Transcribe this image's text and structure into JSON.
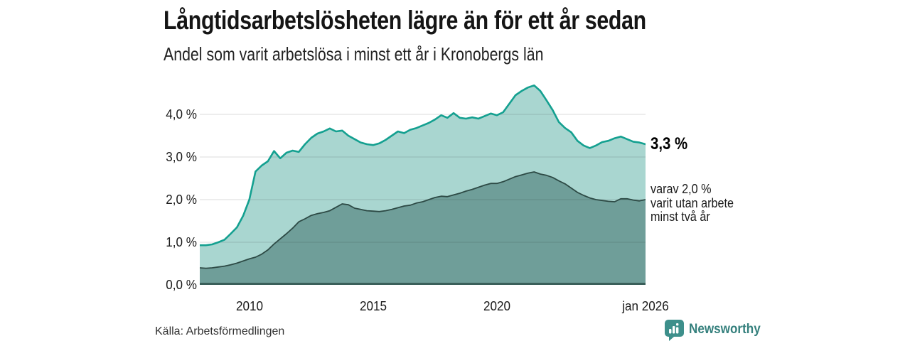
{
  "header": {
    "title": "Långtidsarbetslösheten lägre än för ett år sedan",
    "subtitle": "Andel som varit arbetslösa i minst ett år i Kronobergs län"
  },
  "chart_data": {
    "type": "area",
    "title": "Långtidsarbetslösheten lägre än för ett år sedan",
    "subtitle": "Andel som varit arbetslösa i minst ett år i Kronobergs län",
    "unit": "%",
    "x_range": [
      2008,
      2026
    ],
    "y_range": [
      0,
      4.93
    ],
    "grid_values": [
      1,
      2,
      3,
      4
    ],
    "y_ticks": [
      "0,0 %",
      "1,0 %",
      "2,0 %",
      "3,0 %",
      "4,0 %"
    ],
    "y_tick_values": [
      0,
      1,
      2,
      3,
      4
    ],
    "x_ticks": [
      "2010",
      "2015",
      "2020",
      "jan 2026"
    ],
    "x_tick_years": [
      2010,
      2015,
      2020,
      2026
    ],
    "legend_position": "right-annotations",
    "grid": true,
    "series": [
      {
        "name": "Arbetslösa minst ett år",
        "color": "#14a090",
        "fill": "#a9d6d0",
        "stroke_width": 2.6,
        "x_start": 2008.0,
        "x_step": 0.25,
        "values": [
          0.93,
          0.93,
          0.95,
          1.0,
          1.06,
          1.2,
          1.35,
          1.62,
          2.0,
          2.66,
          2.8,
          2.9,
          3.14,
          2.97,
          3.1,
          3.15,
          3.12,
          3.3,
          3.45,
          3.55,
          3.6,
          3.67,
          3.6,
          3.62,
          3.5,
          3.42,
          3.34,
          3.3,
          3.28,
          3.32,
          3.4,
          3.5,
          3.6,
          3.56,
          3.64,
          3.68,
          3.74,
          3.8,
          3.88,
          3.98,
          3.92,
          4.03,
          3.92,
          3.9,
          3.93,
          3.9,
          3.96,
          4.02,
          3.98,
          4.05,
          4.25,
          4.45,
          4.55,
          4.63,
          4.68,
          4.55,
          4.33,
          4.1,
          3.82,
          3.68,
          3.58,
          3.38,
          3.27,
          3.21,
          3.27,
          3.35,
          3.38,
          3.44,
          3.48,
          3.42,
          3.36,
          3.34,
          3.3
        ]
      },
      {
        "name": "varav arbetslösa minst två år",
        "color": "#2d4a45",
        "fill": "#6f9e99",
        "stroke_width": 1.8,
        "x_start": 2008.0,
        "x_step": 0.25,
        "values": [
          0.4,
          0.39,
          0.4,
          0.42,
          0.44,
          0.47,
          0.51,
          0.56,
          0.61,
          0.65,
          0.72,
          0.82,
          0.96,
          1.08,
          1.2,
          1.33,
          1.48,
          1.55,
          1.63,
          1.67,
          1.7,
          1.74,
          1.82,
          1.9,
          1.88,
          1.8,
          1.77,
          1.74,
          1.73,
          1.72,
          1.74,
          1.77,
          1.81,
          1.85,
          1.87,
          1.92,
          1.95,
          2.0,
          2.05,
          2.08,
          2.07,
          2.11,
          2.15,
          2.2,
          2.24,
          2.29,
          2.34,
          2.38,
          2.38,
          2.42,
          2.48,
          2.54,
          2.58,
          2.62,
          2.65,
          2.6,
          2.57,
          2.52,
          2.44,
          2.37,
          2.27,
          2.17,
          2.1,
          2.04,
          2.0,
          1.98,
          1.96,
          1.95,
          2.02,
          2.02,
          1.99,
          1.97,
          2.0
        ]
      }
    ],
    "annotations": {
      "total_label": "3,3 %",
      "total_value": 3.3,
      "breakdown_line1": "varav 2,0 %",
      "breakdown_line2": "varit utan arbete",
      "breakdown_line3": "minst två år",
      "breakdown_value": 2.0
    }
  },
  "colors": {
    "accent_teal": "#14a090",
    "light_fill": "#a9d6d0",
    "dark_fill": "#6f9e99",
    "dark_line": "#2d4a45",
    "baseline": "#3a5f5a",
    "gridline": "rgba(30,30,30,0.13)",
    "brand_teal": "#35807d"
  },
  "footer": {
    "source": "Källa: Arbetsförmedlingen",
    "brand": "Newsworthy"
  }
}
